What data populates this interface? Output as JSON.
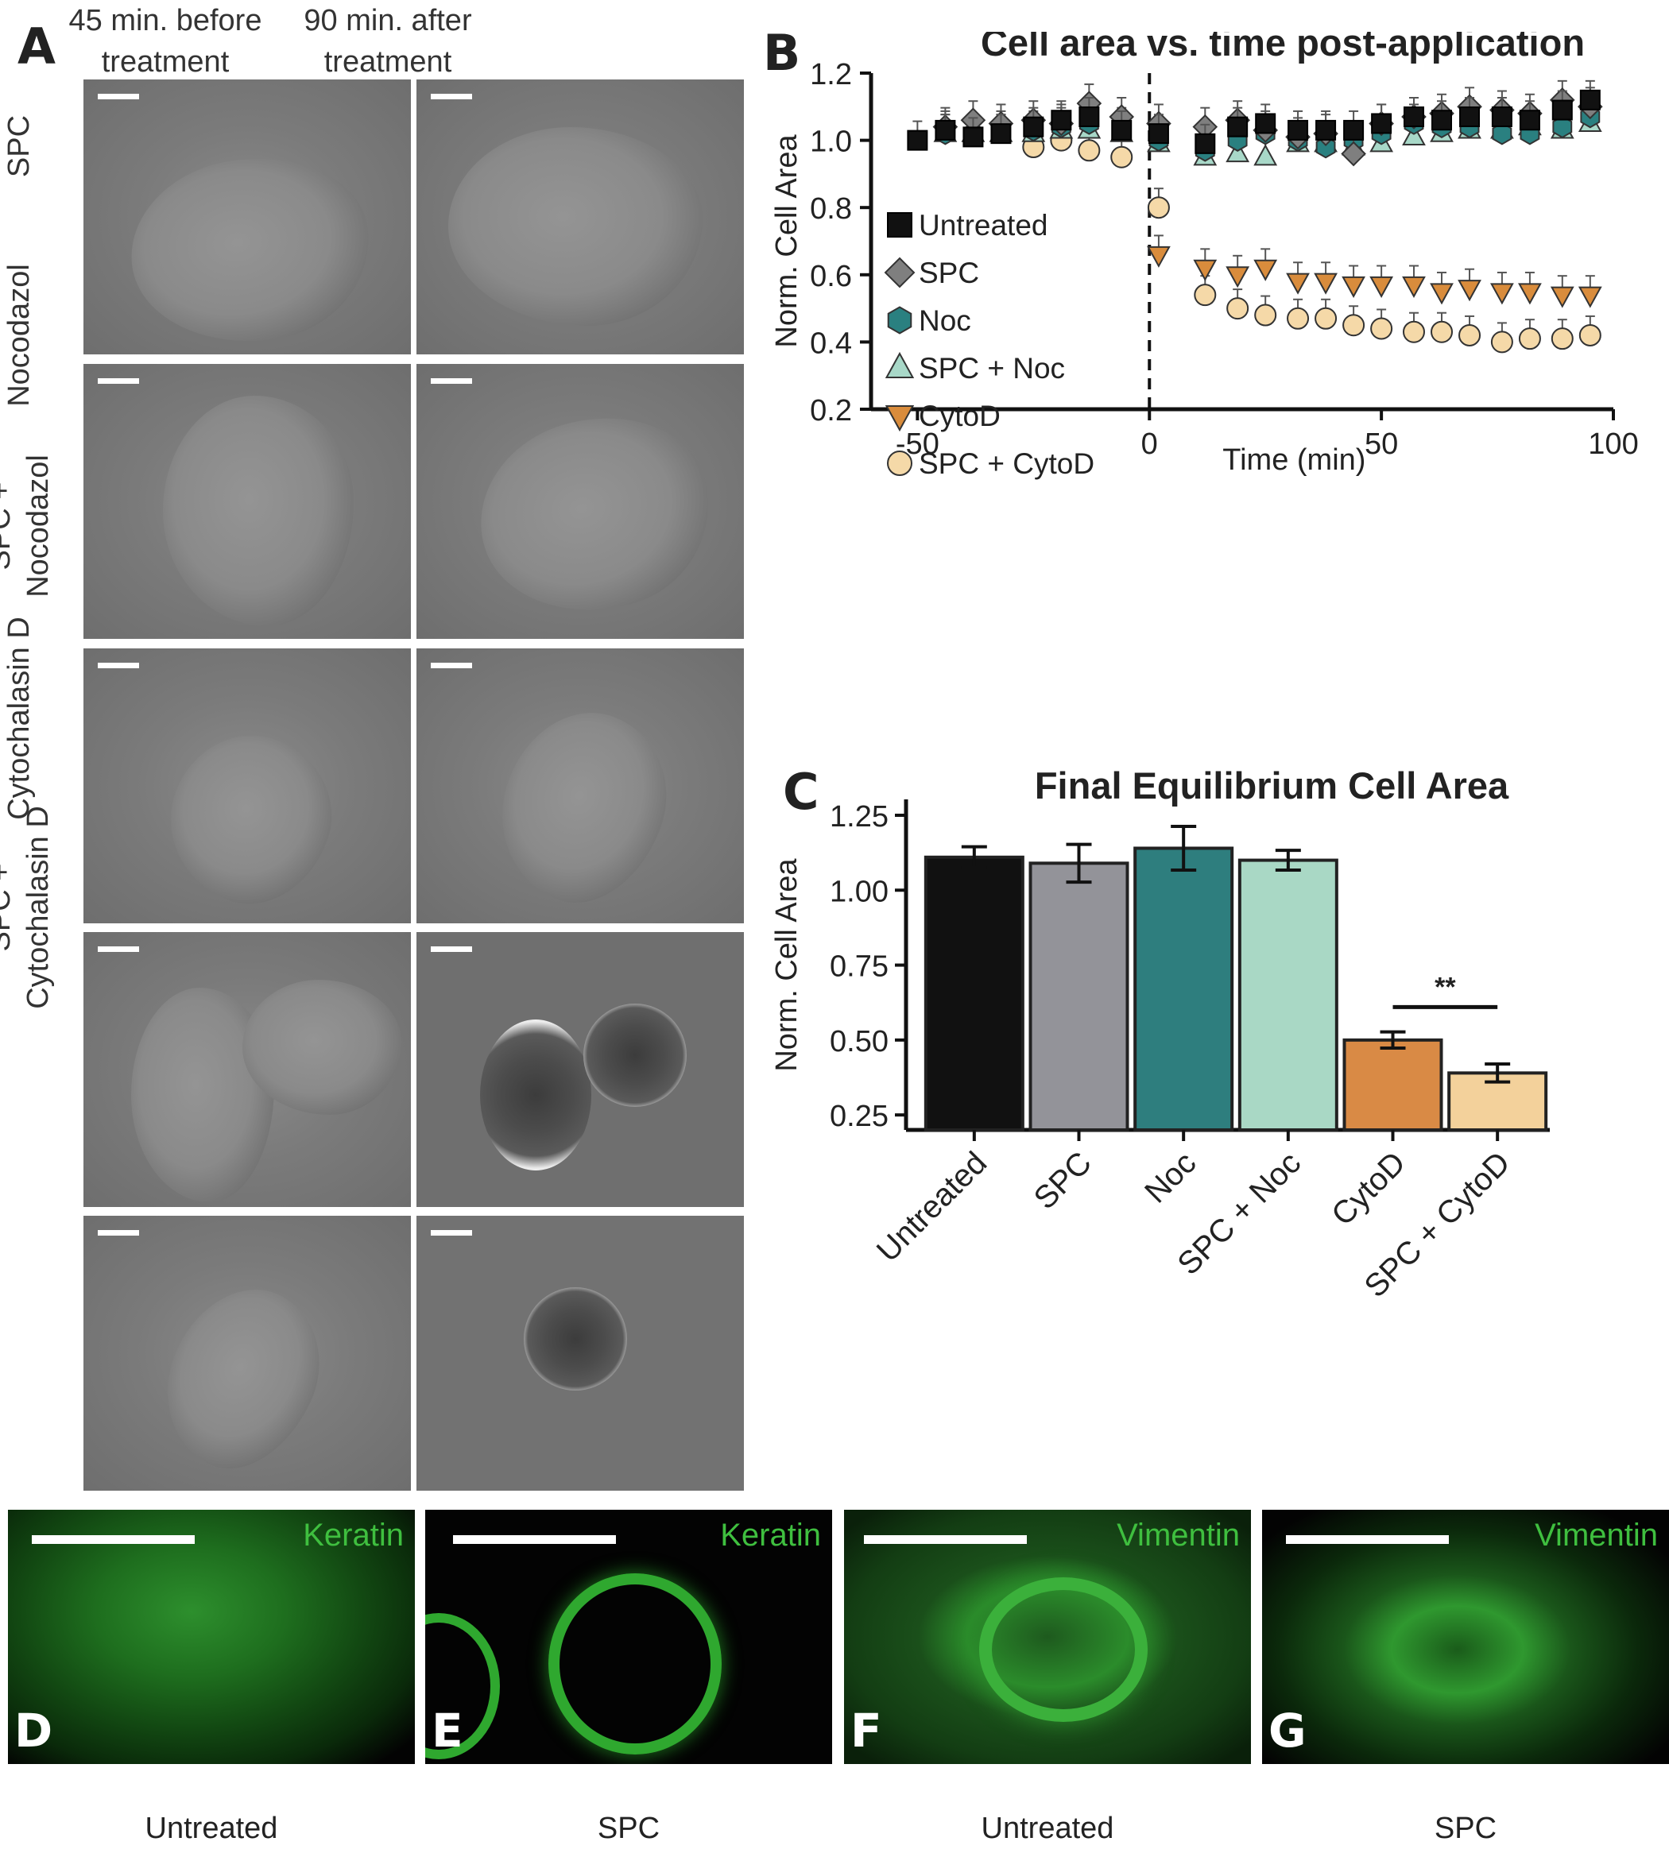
{
  "panels": {
    "A": "A",
    "B": "B",
    "C": "C",
    "D": "D",
    "E": "E",
    "F": "F",
    "G": "G"
  },
  "panel_a": {
    "col1_line1": "45 min. before",
    "col1_line2": "treatment",
    "col2_line1": "90 min. after",
    "col2_line2": "treatment",
    "rows": [
      "SPC",
      "Nocodazol",
      "SPC + Nocodazol",
      "Cytochalasin D",
      "SPC + Cytochalasin D"
    ],
    "row3_line1": "SPC +",
    "row3_line2": "Nocodazol",
    "row5_line1": "SPC +",
    "row5_line2": "Cytochalasin D"
  },
  "panel_fluor": [
    {
      "letter": "D",
      "tag": "Keratin",
      "caption": "Untreated",
      "tag_color": "#3fbf3f"
    },
    {
      "letter": "E",
      "tag": "Keratin",
      "caption": "SPC",
      "tag_color": "#3fbf3f"
    },
    {
      "letter": "F",
      "tag": "Vimentin",
      "caption": "Untreated",
      "tag_color": "#3fbf3f"
    },
    {
      "letter": "G",
      "tag": "Vimentin",
      "caption": "SPC",
      "tag_color": "#3fbf3f"
    }
  ],
  "chart_data": [
    {
      "type": "scatter",
      "title": "Cell area vs. time post-application",
      "xlabel": "Time (min)",
      "ylabel": "Norm. Cell Area",
      "xlim": [
        -60,
        100
      ],
      "ylim": [
        0.2,
        1.2
      ],
      "xticks": [
        -50,
        0,
        50,
        100
      ],
      "yticks": [
        "0.2",
        "0.4",
        "0.6",
        "0.8",
        "1.0",
        "1.2"
      ],
      "legend_position": "left-middle",
      "vline_at": 0,
      "series": [
        {
          "name": "Untreated",
          "marker": "square",
          "color": "#111111",
          "x": [
            -50,
            -44,
            -38,
            -32,
            -25,
            -19,
            -13,
            -6,
            2,
            12,
            19,
            25,
            32,
            38,
            44,
            50,
            57,
            63,
            69,
            76,
            82,
            89,
            95
          ],
          "y": [
            1.0,
            1.03,
            1.01,
            1.02,
            1.04,
            1.06,
            1.07,
            1.03,
            1.02,
            0.99,
            1.04,
            1.05,
            1.03,
            1.03,
            1.03,
            1.05,
            1.07,
            1.06,
            1.07,
            1.07,
            1.06,
            1.09,
            1.12
          ]
        },
        {
          "name": "SPC",
          "marker": "diamond",
          "color": "#7f7f7f",
          "x": [
            -44,
            -38,
            -32,
            -25,
            -19,
            -13,
            -6,
            2,
            12,
            19,
            25,
            32,
            38,
            44,
            50,
            57,
            63,
            69,
            76,
            82,
            89,
            95
          ],
          "y": [
            1.04,
            1.06,
            1.05,
            1.06,
            1.05,
            1.11,
            1.07,
            1.05,
            1.04,
            1.06,
            1.03,
            1.01,
            1.02,
            0.96,
            1.05,
            1.07,
            1.08,
            1.1,
            1.09,
            1.08,
            1.12,
            1.1
          ]
        },
        {
          "name": "Noc",
          "marker": "hexagon",
          "color": "#2a8080",
          "x": [
            -44,
            -38,
            -32,
            -25,
            -19,
            -13,
            -6,
            2,
            12,
            19,
            25,
            32,
            38,
            44,
            50,
            57,
            63,
            69,
            76,
            82,
            89,
            95
          ],
          "y": [
            1.02,
            1.02,
            1.03,
            1.03,
            1.04,
            1.05,
            1.04,
            1.0,
            0.97,
            1.0,
            1.02,
            1.0,
            0.98,
            1.0,
            1.02,
            1.05,
            1.04,
            1.04,
            1.02,
            1.02,
            1.04,
            1.07
          ]
        },
        {
          "name": "SPC + Noc",
          "marker": "triangle-up",
          "color": "#a8d8c8",
          "x": [
            -44,
            -38,
            -32,
            -25,
            -19,
            -13,
            -6,
            2,
            12,
            19,
            25,
            32,
            38,
            44,
            50,
            57,
            63,
            69,
            76,
            82,
            89,
            95
          ],
          "y": [
            1.02,
            1.02,
            1.02,
            1.02,
            1.03,
            1.03,
            1.02,
            0.99,
            0.95,
            0.96,
            0.95,
            0.99,
            0.99,
            0.98,
            0.99,
            1.01,
            1.02,
            1.03,
            1.03,
            1.04,
            1.03,
            1.05
          ]
        },
        {
          "name": "CytoD",
          "marker": "triangle-down",
          "color": "#d98c3c",
          "x": [
            2,
            12,
            19,
            25,
            32,
            38,
            44,
            50,
            57,
            63,
            69,
            76,
            82,
            89,
            95
          ],
          "y": [
            0.66,
            0.62,
            0.6,
            0.62,
            0.58,
            0.58,
            0.57,
            0.57,
            0.57,
            0.55,
            0.56,
            0.55,
            0.55,
            0.54,
            0.54
          ]
        },
        {
          "name": "SPC + CytoD",
          "marker": "circle",
          "color": "#f5d9a8",
          "x": [
            -25,
            -19,
            -13,
            -6,
            2,
            12,
            19,
            25,
            32,
            38,
            44,
            50,
            57,
            63,
            69,
            76,
            82,
            89,
            95
          ],
          "y": [
            0.98,
            1.0,
            0.97,
            0.95,
            0.8,
            0.54,
            0.5,
            0.48,
            0.47,
            0.47,
            0.45,
            0.44,
            0.43,
            0.43,
            0.42,
            0.4,
            0.41,
            0.41,
            0.42
          ]
        }
      ]
    },
    {
      "type": "bar",
      "title": "Final Equilibrium Cell Area",
      "ylabel": "Norm. Cell Area",
      "ylim": [
        0.2,
        1.25
      ],
      "yticks": [
        "0.25",
        "0.50",
        "0.75",
        "1.00",
        "1.25"
      ],
      "categories": [
        "Untreated",
        "SPC",
        "Noc",
        "SPC + Noc",
        "CytoD",
        "SPC + CytoD"
      ],
      "values": [
        1.11,
        1.09,
        1.14,
        1.1,
        0.5,
        0.39
      ],
      "errors": [
        0.035,
        0.063,
        0.073,
        0.033,
        0.027,
        0.03
      ],
      "colors": [
        "#111111",
        "#939399",
        "#2e7e7e",
        "#a9d8c5",
        "#d98a45",
        "#f3d19b"
      ],
      "significance": {
        "between": [
          4,
          5
        ],
        "label": "**"
      }
    }
  ]
}
